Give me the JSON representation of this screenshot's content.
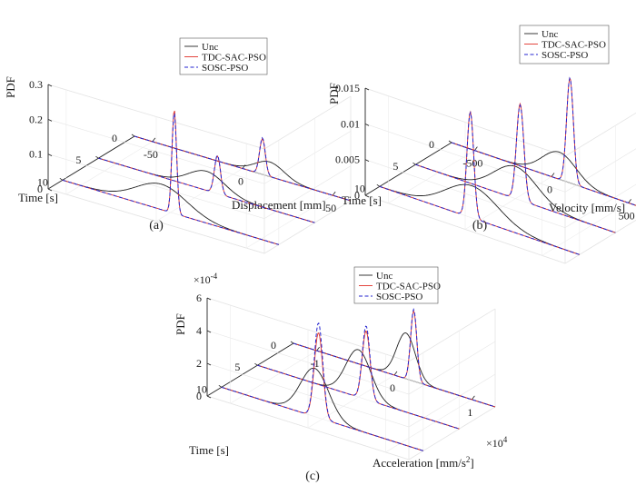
{
  "figure": {
    "legend_items": [
      "Unc",
      "TDC-SAC-PSO",
      "SOSC-PSO"
    ],
    "colors": {
      "Unc": "#222222",
      "TDC-SAC-PSO": "#e0322a",
      "SOSC-PSO": "#2525d0",
      "TDC-dot": "#e8a090"
    }
  },
  "chart_data": [
    {
      "type": "line",
      "panel_label": "(a)",
      "zlabel": "PDF",
      "xlabel": "Time [s]",
      "ylabel": "Displacement [mm]",
      "z_ticks": [
        "0",
        "0.1",
        "0.2",
        "0.3"
      ],
      "z_tick_values": [
        0,
        0.1,
        0.2,
        0.3
      ],
      "time_ticks": [
        "10",
        "5",
        "0"
      ],
      "value_ticks": [
        "-50",
        "0",
        "50"
      ],
      "value_tick_values": [
        -50,
        0,
        50
      ],
      "zlim": [
        0,
        0.3
      ],
      "xlim": [
        0,
        12
      ],
      "ylim": [
        -60,
        60
      ],
      "legend_position": "top-right",
      "times": [
        10,
        5,
        0
      ],
      "series": [
        {
          "name": "Unc",
          "peaks": [
            {
              "t": 10,
              "mu": -5,
              "sigma": 14,
              "amp": 0.073
            },
            {
              "t": 5,
              "mu": 0,
              "sigma": 10,
              "amp": 0.055
            },
            {
              "t": 0,
              "mu": 15,
              "sigma": 8,
              "amp": 0.042
            }
          ]
        },
        {
          "name": "TDC-SAC-PSO",
          "peaks": [
            {
              "t": 10,
              "mu": 2,
              "sigma": 1.3,
              "amp": 0.298
            },
            {
              "t": 5,
              "mu": 6,
              "sigma": 1.7,
              "amp": 0.108
            },
            {
              "t": 0,
              "mu": 11,
              "sigma": 1.6,
              "amp": 0.102
            }
          ]
        },
        {
          "name": "SOSC-PSO",
          "peaks": [
            {
              "t": 10,
              "mu": 2,
              "sigma": 1.3,
              "amp": 0.29
            },
            {
              "t": 5,
              "mu": 6,
              "sigma": 1.7,
              "amp": 0.11
            },
            {
              "t": 0,
              "mu": 11,
              "sigma": 1.6,
              "amp": 0.105
            }
          ]
        }
      ]
    },
    {
      "type": "line",
      "panel_label": "(b)",
      "zlabel": "PDF",
      "xlabel": "Time [s]",
      "ylabel": "Velocity [mm/s]",
      "z_ticks": [
        "0",
        "0.005",
        "0.01",
        "0.015"
      ],
      "z_tick_values": [
        0,
        0.005,
        0.01,
        0.015
      ],
      "time_ticks": [
        "10",
        "5",
        "0"
      ],
      "value_ticks": [
        "-500",
        "0",
        "500"
      ],
      "value_tick_values": [
        -500,
        0,
        500
      ],
      "zlim": [
        0,
        0.015
      ],
      "xlim": [
        0,
        12
      ],
      "ylim": [
        -650,
        650
      ],
      "legend_position": "top-right",
      "times": [
        10,
        5,
        0
      ],
      "series": [
        {
          "name": "Unc",
          "peaks": [
            {
              "t": 10,
              "mu": -50,
              "sigma": 170,
              "amp": 0.0045
            },
            {
              "t": 5,
              "mu": 0,
              "sigma": 140,
              "amp": 0.0045
            },
            {
              "t": 0,
              "mu": 50,
              "sigma": 110,
              "amp": 0.0038
            }
          ]
        },
        {
          "name": "TDC-SAC-PSO",
          "peaks": [
            {
              "t": 10,
              "mu": -60,
              "sigma": 22,
              "amp": 0.0148
            },
            {
              "t": 5,
              "mu": 30,
              "sigma": 24,
              "amp": 0.0135
            },
            {
              "t": 0,
              "mu": 120,
              "sigma": 22,
              "amp": 0.0147
            }
          ]
        },
        {
          "name": "SOSC-PSO",
          "peaks": [
            {
              "t": 10,
              "mu": -60,
              "sigma": 22,
              "amp": 0.0147
            },
            {
              "t": 5,
              "mu": 30,
              "sigma": 24,
              "amp": 0.0133
            },
            {
              "t": 0,
              "mu": 120,
              "sigma": 22,
              "amp": 0.0147
            }
          ]
        }
      ]
    },
    {
      "type": "line",
      "panel_label": "(c)",
      "zlabel": "PDF",
      "xlabel": "Time [s]",
      "ylabel": "Acceleration [mm/s",
      "ylabel_sup": "2",
      "ylabel_end": "]",
      "z_multiplier": "×10",
      "z_multiplier_exp": "-4",
      "value_multiplier": "×10",
      "value_multiplier_exp": "4",
      "z_ticks": [
        "0",
        "2",
        "4",
        "6"
      ],
      "z_tick_values": [
        0,
        2,
        4,
        6
      ],
      "time_ticks": [
        "10",
        "5",
        "0"
      ],
      "value_ticks": [
        "-1",
        "0",
        "1"
      ],
      "value_tick_values": [
        -1,
        0,
        1
      ],
      "zlim": [
        0,
        6
      ],
      "xlim": [
        0,
        12
      ],
      "ylim": [
        -1.3,
        1.3
      ],
      "legend_position": "top-right",
      "times": [
        10,
        5,
        0
      ],
      "series": [
        {
          "name": "Unc",
          "peaks": [
            {
              "t": 10,
              "mu": -0.1,
              "sigma": 0.18,
              "amp": 2.95
            },
            {
              "t": 5,
              "mu": 0,
              "sigma": 0.16,
              "amp": 2.9
            },
            {
              "t": 0,
              "mu": 0.15,
              "sigma": 0.12,
              "amp": 2.8
            }
          ]
        },
        {
          "name": "TDC-SAC-PSO",
          "peaks": [
            {
              "t": 10,
              "mu": -0.05,
              "sigma": 0.055,
              "amp": 5.2
            },
            {
              "t": 5,
              "mu": 0.1,
              "sigma": 0.05,
              "amp": 4.2
            },
            {
              "t": 0,
              "mu": 0.25,
              "sigma": 0.04,
              "amp": 4.3
            }
          ]
        },
        {
          "name": "SOSC-PSO",
          "peaks": [
            {
              "t": 10,
              "mu": -0.05,
              "sigma": 0.055,
              "amp": 5.8
            },
            {
              "t": 5,
              "mu": 0.1,
              "sigma": 0.05,
              "amp": 4.5
            },
            {
              "t": 0,
              "mu": 0.25,
              "sigma": 0.04,
              "amp": 4.4
            }
          ]
        }
      ]
    }
  ]
}
